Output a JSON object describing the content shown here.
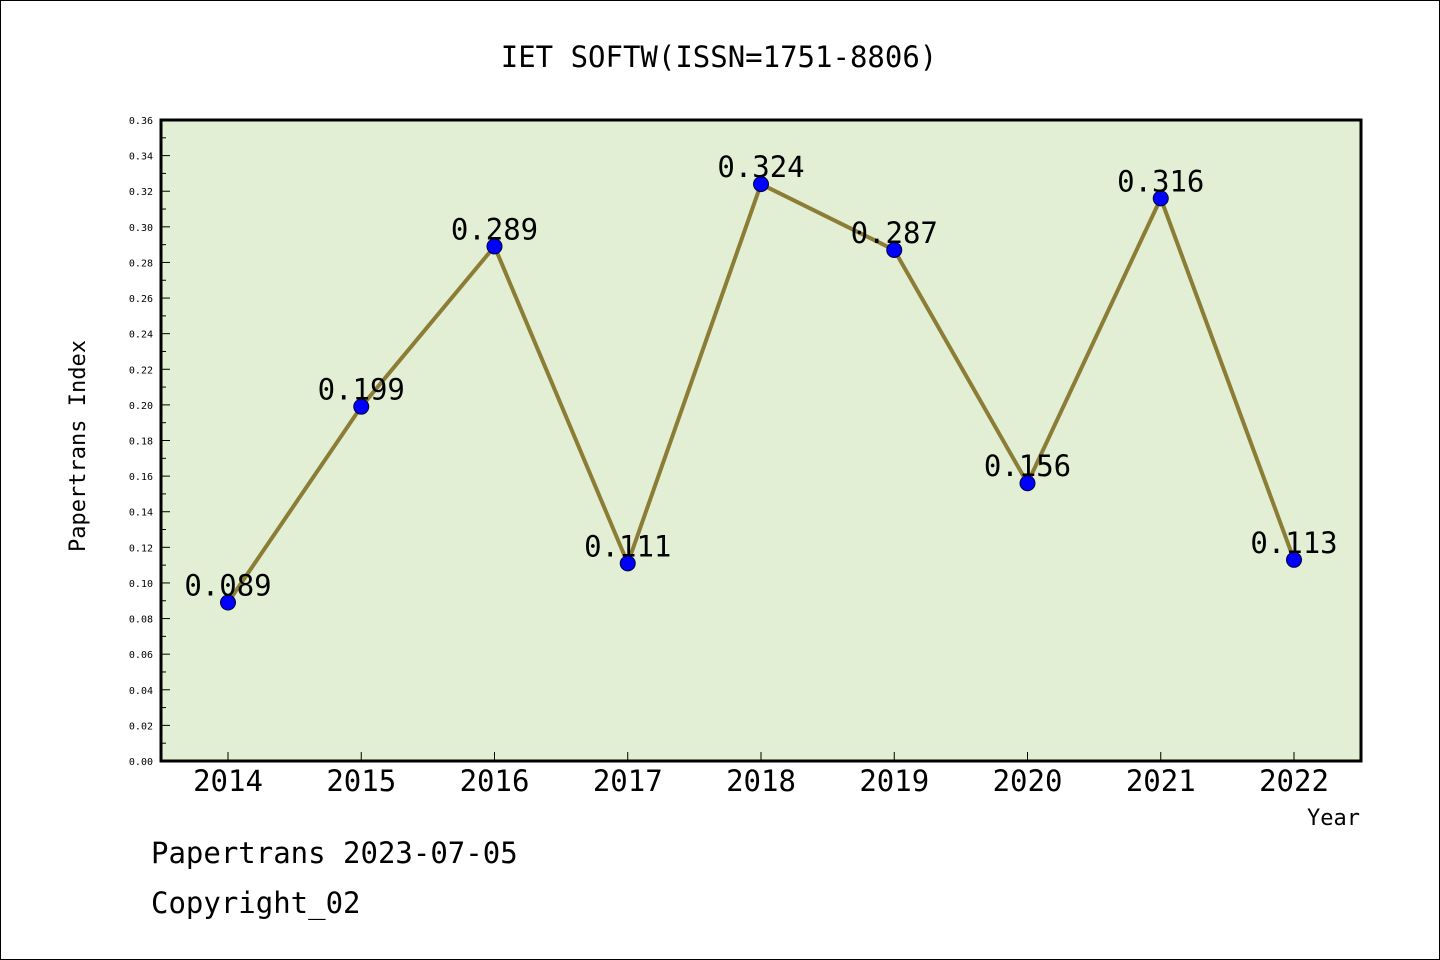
{
  "chart_data": {
    "type": "line",
    "title": "IET SOFTW(ISSN=1751-8806)",
    "xlabel": "Year",
    "ylabel": "Papertrans Index",
    "categories": [
      "2014",
      "2015",
      "2016",
      "2017",
      "2018",
      "2019",
      "2020",
      "2021",
      "2022"
    ],
    "series": [
      {
        "values": [
          0.089,
          0.199,
          0.289,
          0.111,
          0.324,
          0.287,
          0.156,
          0.316,
          0.113
        ],
        "labels": [
          "0.089",
          "0.199",
          "0.289",
          "0.111",
          "0.324",
          "0.287",
          "0.156",
          "0.316",
          "0.113"
        ]
      }
    ],
    "ylim": [
      0,
      0.36
    ],
    "yticks": [
      "0.00",
      "0.02",
      "0.04",
      "0.06",
      "0.08",
      "0.10",
      "0.12",
      "0.14",
      "0.16",
      "0.18",
      "0.20",
      "0.22",
      "0.24",
      "0.26",
      "0.28",
      "0.30",
      "0.32",
      "0.34",
      "0.36"
    ],
    "grid": false,
    "colors": {
      "plot_background": "#e2efd4",
      "line": "#8b7d35",
      "marker": "#0000ff",
      "frame": "#000000"
    }
  },
  "footer": {
    "date_line": "Papertrans 2023-07-05",
    "copyright": "Copyright_02"
  }
}
